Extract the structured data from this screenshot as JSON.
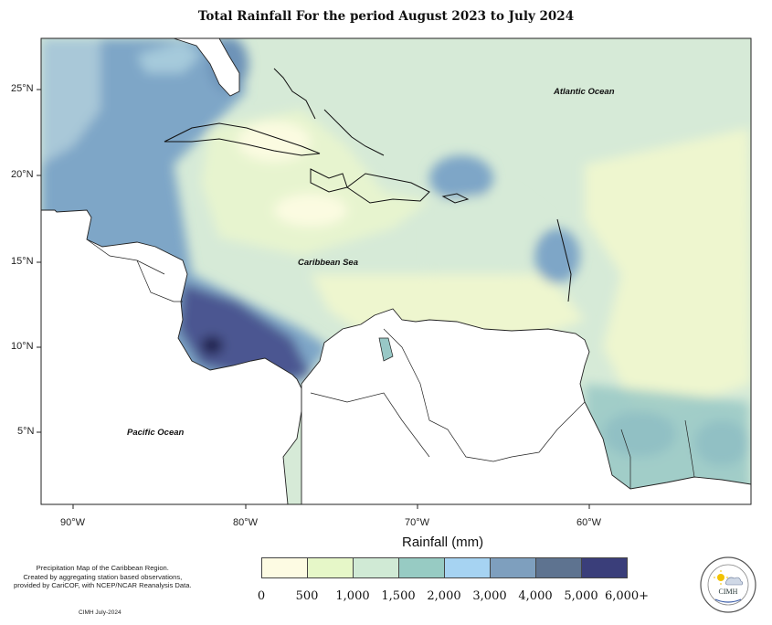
{
  "title": "Total Rainfall For the period August 2023 to July 2024",
  "map": {
    "y_ticks": [
      "25°N",
      "20°N",
      "15°N",
      "10°N",
      "5°N"
    ],
    "x_ticks": [
      "90°W",
      "80°W",
      "70°W",
      "60°W"
    ],
    "labels": {
      "atlantic": "Atlantic Ocean",
      "caribbean": "Caribbean Sea",
      "pacific": "Pacific Ocean"
    }
  },
  "legend": {
    "title": "Rainfall (mm)",
    "breaks": [
      "0",
      "500",
      "1,000",
      "1,500",
      "2,000",
      "3,000",
      "4,000",
      "5,000",
      "6,000+"
    ],
    "colors": [
      "#fdfbe3",
      "#e6f7c8",
      "#d0ead5",
      "#97cbc3",
      "#a6d3f2",
      "#7e9fbe",
      "#5e7390",
      "#3a3e7a"
    ]
  },
  "credit": {
    "lines": [
      "Precipitation Map of the Caribbean Region.",
      "Created by aggregating station based observations,",
      "provided by CariCOF, with NCEP/NCAR Reanalysis Data."
    ],
    "date": "CIMH July-2024"
  },
  "logo": {
    "text": "CIMH"
  }
}
